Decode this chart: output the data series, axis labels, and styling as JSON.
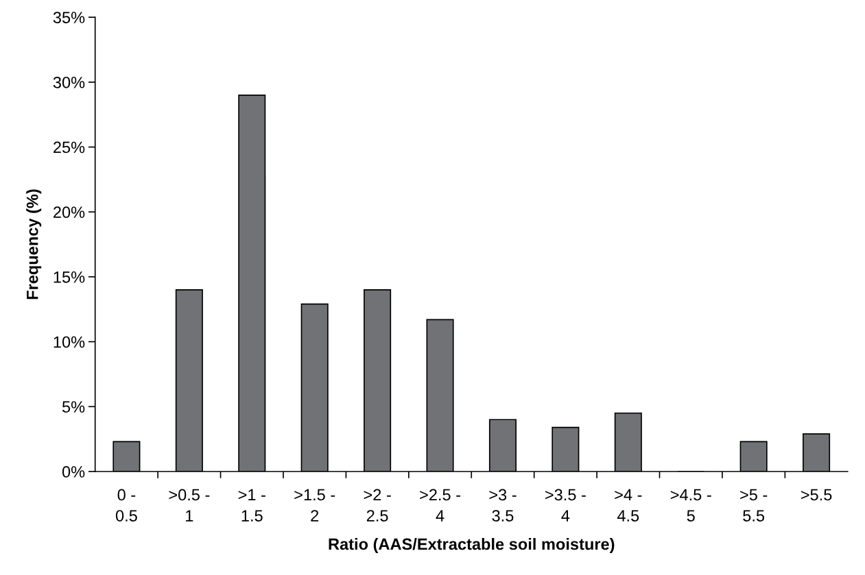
{
  "chart_data": {
    "type": "bar",
    "xlabel": "Ratio (AAS/Extractable soil moisture)",
    "ylabel": "Frequency (%)",
    "categories": [
      "0 -\n0.5",
      ">0.5 -\n1",
      ">1 -\n1.5",
      ">1.5 -\n2",
      ">2 -\n2.5",
      ">2.5 -\n4",
      ">3 -\n3.5",
      ">3.5 -\n4",
      ">4 -\n4.5",
      ">4.5 -\n5",
      ">5 -\n5.5",
      ">5.5"
    ],
    "values": [
      2.3,
      14.0,
      29.0,
      12.9,
      14.0,
      11.7,
      4.0,
      3.4,
      4.5,
      0,
      2.3,
      2.9
    ],
    "color": "#717275",
    "ylim": [
      0,
      35
    ],
    "yticks": [
      {
        "value": 0,
        "label": "0%"
      },
      {
        "value": 5,
        "label": "5%"
      },
      {
        "value": 10,
        "label": "10%"
      },
      {
        "value": 15,
        "label": "15%"
      },
      {
        "value": 20,
        "label": "20%"
      },
      {
        "value": 25,
        "label": "25%"
      },
      {
        "value": 30,
        "label": "30%"
      },
      {
        "value": 35,
        "label": "35%"
      }
    ],
    "grid": false
  }
}
